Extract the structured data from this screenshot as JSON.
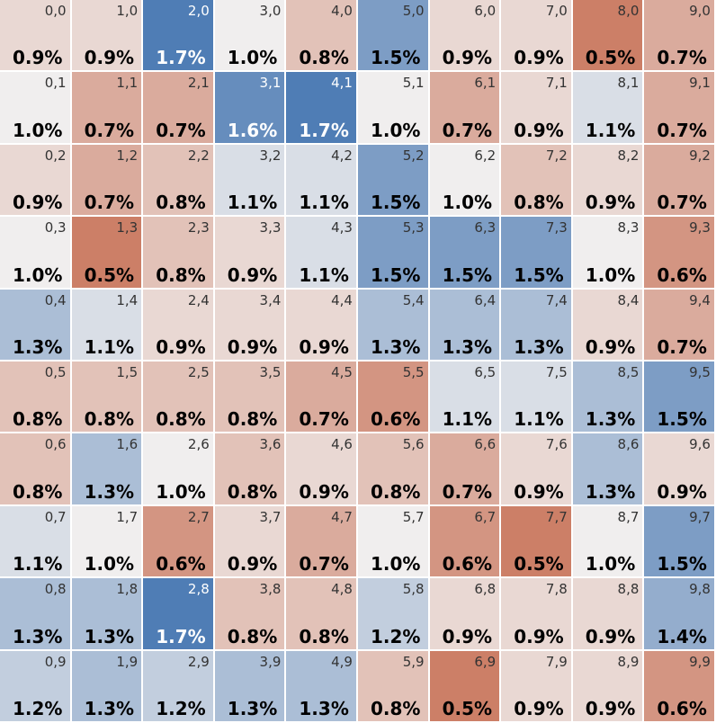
{
  "chart_data": {
    "type": "heatmap",
    "title": "",
    "grid_size": 10,
    "value_unit": "%",
    "colors": {
      "low": "#cc7f67",
      "mid": "#f0eeee",
      "high": "#4f7db5",
      "text_dark": "#000000",
      "coord_dark": "#333333",
      "text_light": "#ffffff",
      "gap": "#ffffff"
    },
    "cells": [
      {
        "label": "0,0",
        "value": 0.9
      },
      {
        "label": "1,0",
        "value": 0.9
      },
      {
        "label": "2,0",
        "value": 1.7
      },
      {
        "label": "3,0",
        "value": 1.0
      },
      {
        "label": "4,0",
        "value": 0.8
      },
      {
        "label": "5,0",
        "value": 1.5
      },
      {
        "label": "6,0",
        "value": 0.9
      },
      {
        "label": "7,0",
        "value": 0.9
      },
      {
        "label": "8,0",
        "value": 0.5
      },
      {
        "label": "9,0",
        "value": 0.7
      },
      {
        "label": "0,1",
        "value": 1.0
      },
      {
        "label": "1,1",
        "value": 0.7
      },
      {
        "label": "2,1",
        "value": 0.7
      },
      {
        "label": "3,1",
        "value": 1.6
      },
      {
        "label": "4,1",
        "value": 1.7
      },
      {
        "label": "5,1",
        "value": 1.0
      },
      {
        "label": "6,1",
        "value": 0.7
      },
      {
        "label": "7,1",
        "value": 0.9
      },
      {
        "label": "8,1",
        "value": 1.1
      },
      {
        "label": "9,1",
        "value": 0.7
      },
      {
        "label": "0,2",
        "value": 0.9
      },
      {
        "label": "1,2",
        "value": 0.7
      },
      {
        "label": "2,2",
        "value": 0.8
      },
      {
        "label": "3,2",
        "value": 1.1
      },
      {
        "label": "4,2",
        "value": 1.1
      },
      {
        "label": "5,2",
        "value": 1.5
      },
      {
        "label": "6,2",
        "value": 1.0
      },
      {
        "label": "7,2",
        "value": 0.8
      },
      {
        "label": "8,2",
        "value": 0.9
      },
      {
        "label": "9,2",
        "value": 0.7
      },
      {
        "label": "0,3",
        "value": 1.0
      },
      {
        "label": "1,3",
        "value": 0.5
      },
      {
        "label": "2,3",
        "value": 0.8
      },
      {
        "label": "3,3",
        "value": 0.9
      },
      {
        "label": "4,3",
        "value": 1.1
      },
      {
        "label": "5,3",
        "value": 1.5
      },
      {
        "label": "6,3",
        "value": 1.5
      },
      {
        "label": "7,3",
        "value": 1.5
      },
      {
        "label": "8,3",
        "value": 1.0
      },
      {
        "label": "9,3",
        "value": 0.6
      },
      {
        "label": "0,4",
        "value": 1.3
      },
      {
        "label": "1,4",
        "value": 1.1
      },
      {
        "label": "2,4",
        "value": 0.9
      },
      {
        "label": "3,4",
        "value": 0.9
      },
      {
        "label": "4,4",
        "value": 0.9
      },
      {
        "label": "5,4",
        "value": 1.3
      },
      {
        "label": "6,4",
        "value": 1.3
      },
      {
        "label": "7,4",
        "value": 1.3
      },
      {
        "label": "8,4",
        "value": 0.9
      },
      {
        "label": "9,4",
        "value": 0.7
      },
      {
        "label": "0,5",
        "value": 0.8
      },
      {
        "label": "1,5",
        "value": 0.8
      },
      {
        "label": "2,5",
        "value": 0.8
      },
      {
        "label": "3,5",
        "value": 0.8
      },
      {
        "label": "4,5",
        "value": 0.7
      },
      {
        "label": "5,5",
        "value": 0.6
      },
      {
        "label": "6,5",
        "value": 1.1
      },
      {
        "label": "7,5",
        "value": 1.1
      },
      {
        "label": "8,5",
        "value": 1.3
      },
      {
        "label": "9,5",
        "value": 1.5
      },
      {
        "label": "0,6",
        "value": 0.8
      },
      {
        "label": "1,6",
        "value": 1.3
      },
      {
        "label": "2,6",
        "value": 1.0
      },
      {
        "label": "3,6",
        "value": 0.8
      },
      {
        "label": "4,6",
        "value": 0.9
      },
      {
        "label": "5,6",
        "value": 0.8
      },
      {
        "label": "6,6",
        "value": 0.7
      },
      {
        "label": "7,6",
        "value": 0.9
      },
      {
        "label": "8,6",
        "value": 1.3
      },
      {
        "label": "9,6",
        "value": 0.9
      },
      {
        "label": "0,7",
        "value": 1.1
      },
      {
        "label": "1,7",
        "value": 1.0
      },
      {
        "label": "2,7",
        "value": 0.6
      },
      {
        "label": "3,7",
        "value": 0.9
      },
      {
        "label": "4,7",
        "value": 0.7
      },
      {
        "label": "5,7",
        "value": 1.0
      },
      {
        "label": "6,7",
        "value": 0.6
      },
      {
        "label": "7,7",
        "value": 0.5
      },
      {
        "label": "8,7",
        "value": 1.0
      },
      {
        "label": "9,7",
        "value": 1.5
      },
      {
        "label": "0,8",
        "value": 1.3
      },
      {
        "label": "1,8",
        "value": 1.3
      },
      {
        "label": "2,8",
        "value": 1.7
      },
      {
        "label": "3,8",
        "value": 0.8
      },
      {
        "label": "4,8",
        "value": 0.8
      },
      {
        "label": "5,8",
        "value": 1.2
      },
      {
        "label": "6,8",
        "value": 0.9
      },
      {
        "label": "7,8",
        "value": 0.9
      },
      {
        "label": "8,8",
        "value": 0.9
      },
      {
        "label": "9,8",
        "value": 1.4
      },
      {
        "label": "0,9",
        "value": 1.2
      },
      {
        "label": "1,9",
        "value": 1.3
      },
      {
        "label": "2,9",
        "value": 1.2
      },
      {
        "label": "3,9",
        "value": 1.3
      },
      {
        "label": "4,9",
        "value": 1.3
      },
      {
        "label": "5,9",
        "value": 0.8
      },
      {
        "label": "6,9",
        "value": 0.5
      },
      {
        "label": "7,9",
        "value": 0.9
      },
      {
        "label": "8,9",
        "value": 0.9
      },
      {
        "label": "9,9",
        "value": 0.6
      }
    ]
  }
}
